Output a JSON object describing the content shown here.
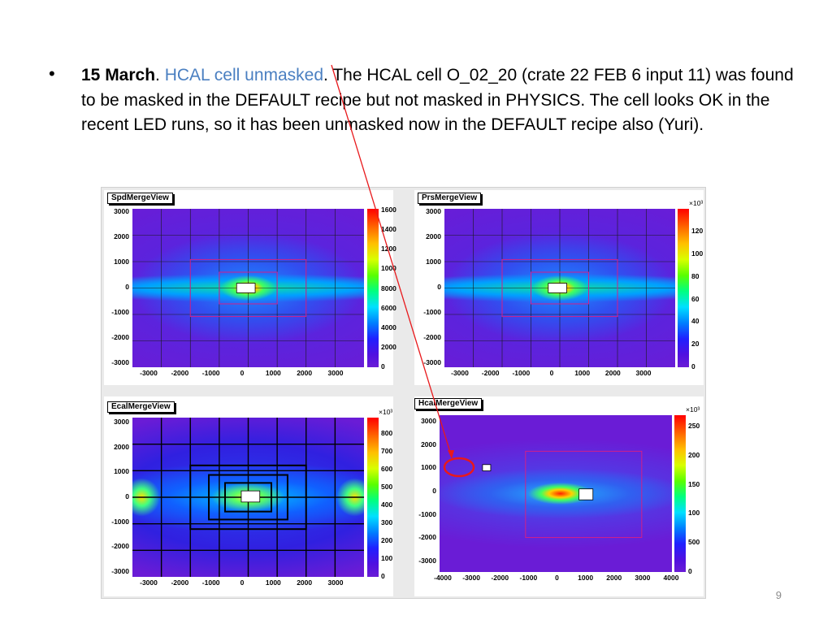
{
  "slide": {
    "bullet_symbol": "•",
    "date": "15 March",
    "dot1": ". ",
    "link_text": "HCAL cell unmasked",
    "body": ". The HCAL cell O_02_20 (crate 22 FEB 6 input 11) was found to be masked in the DEFAULT recipe but not masked in PHYSICS. The cell looks OK in the recent LED runs, so it has been unmasked now in the DEFAULT recipe also (Yuri).",
    "page_number": "9"
  },
  "panels": {
    "spd": {
      "title": "SpdMergeView",
      "y_ticks": [
        "3000",
        "2000",
        "1000",
        "0",
        "-1000",
        "-2000",
        "-3000"
      ],
      "x_ticks": [
        "-3000",
        "-2000",
        "-1000",
        "0",
        "1000",
        "2000",
        "3000"
      ],
      "scale_ticks": [
        "1600",
        "1400",
        "1200",
        "1000",
        "8000",
        "6000",
        "4000",
        "2000",
        "0"
      ],
      "multiplier": ""
    },
    "prs": {
      "title": "PrsMergeView",
      "y_ticks": [
        "3000",
        "2000",
        "1000",
        "0",
        "-1000",
        "-2000",
        "-3000"
      ],
      "x_ticks": [
        "-3000",
        "-2000",
        "-1000",
        "0",
        "1000",
        "2000",
        "3000"
      ],
      "scale_ticks": [
        "120",
        "100",
        "80",
        "60",
        "40",
        "20",
        "0"
      ],
      "multiplier": "×10³"
    },
    "ecal": {
      "title": "EcalMergeView",
      "y_ticks": [
        "3000",
        "2000",
        "1000",
        "0",
        "-1000",
        "-2000",
        "-3000"
      ],
      "x_ticks": [
        "-3000",
        "-2000",
        "-1000",
        "0",
        "1000",
        "2000",
        "3000"
      ],
      "scale_ticks": [
        "800",
        "700",
        "600",
        "500",
        "400",
        "300",
        "200",
        "100",
        "0"
      ],
      "multiplier": "×10³"
    },
    "hcal": {
      "title": "HcalMergeView",
      "y_ticks": [
        "3000",
        "2000",
        "1000",
        "0",
        "-1000",
        "-2000",
        "-3000"
      ],
      "x_ticks": [
        "-4000",
        "-3000",
        "-2000",
        "-1000",
        "0",
        "1000",
        "2000",
        "3000",
        "4000"
      ],
      "scale_ticks": [
        "250",
        "200",
        "150",
        "100",
        "500",
        "0"
      ],
      "multiplier": "×10³"
    }
  },
  "colors": {
    "link": "#4a7fc1",
    "annotation": "#e8191c",
    "background_map": "#6a1cd6"
  }
}
